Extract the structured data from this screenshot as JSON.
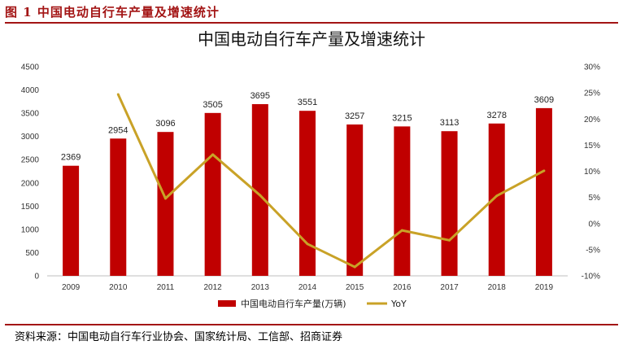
{
  "figure_caption": "图 1  中国电动自行车产量及增速统计",
  "source": "资料来源：中国电动自行车行业协会、国家统计局、工信部、招商证券",
  "colors": {
    "bar": "#c00000",
    "line": "#c9a227",
    "accent": "#a31515"
  },
  "chart_data": {
    "type": "bar",
    "title": "中国电动自行车产量及增速统计",
    "categories": [
      "2009",
      "2010",
      "2011",
      "2012",
      "2013",
      "2014",
      "2015",
      "2016",
      "2017",
      "2018",
      "2019"
    ],
    "series": [
      {
        "name": "中国电动自行车产量(万辆)",
        "type": "bar",
        "axis": "left",
        "values": [
          2369,
          2954,
          3096,
          3505,
          3695,
          3551,
          3257,
          3215,
          3113,
          3278,
          3609
        ]
      },
      {
        "name": "YoY",
        "type": "line",
        "axis": "right",
        "values": [
          null,
          24.7,
          4.8,
          13.2,
          5.4,
          -3.9,
          -8.3,
          -1.3,
          -3.2,
          5.3,
          10.1
        ]
      }
    ],
    "y_left": {
      "min": 0,
      "max": 4500,
      "step": 500,
      "ticks": [
        "0",
        "500",
        "1000",
        "1500",
        "2000",
        "2500",
        "3000",
        "3500",
        "4000",
        "4500"
      ]
    },
    "y_right": {
      "min": -10,
      "max": 30,
      "step": 5,
      "ticks": [
        "-10%",
        "-5%",
        "0%",
        "5%",
        "10%",
        "15%",
        "20%",
        "25%",
        "30%"
      ]
    },
    "legend_position": "bottom",
    "grid": false
  }
}
